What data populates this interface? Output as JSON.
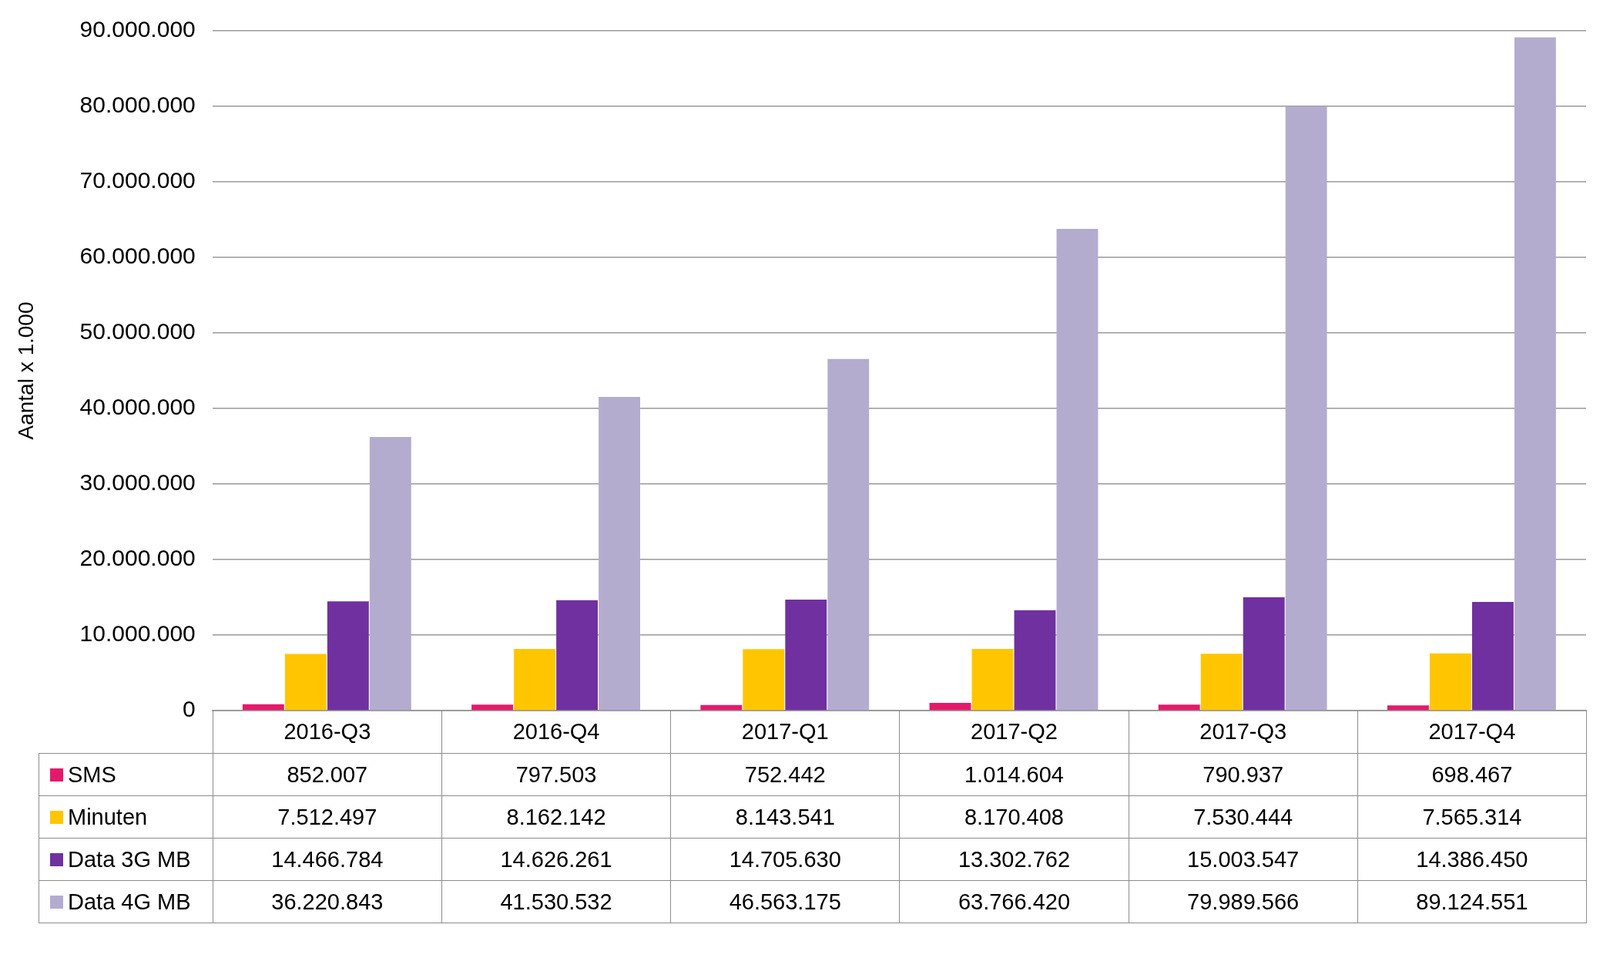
{
  "chart_data": {
    "type": "bar",
    "ylabel": "Aantal x 1.000",
    "categories": [
      "2016-Q3",
      "2016-Q4",
      "2017-Q1",
      "2017-Q2",
      "2017-Q3",
      "2017-Q4"
    ],
    "series": [
      {
        "name": "SMS",
        "color": "#e5196c",
        "values": [
          852007,
          797503,
          752442,
          1014604,
          790937,
          698467
        ],
        "value_labels": [
          "852.007",
          "797.503",
          "752.442",
          "1.014.604",
          "790.937",
          "698.467"
        ]
      },
      {
        "name": "Minuten",
        "color": "#ffc600",
        "values": [
          7512497,
          8162142,
          8143541,
          8170408,
          7530444,
          7565314
        ],
        "value_labels": [
          "7.512.497",
          "8.162.142",
          "8.143.541",
          "8.170.408",
          "7.530.444",
          "7.565.314"
        ]
      },
      {
        "name": "Data 3G MB",
        "color": "#7030a0",
        "values": [
          14466784,
          14626261,
          14705630,
          13302762,
          15003547,
          14386450
        ],
        "value_labels": [
          "14.466.784",
          "14.626.261",
          "14.705.630",
          "13.302.762",
          "15.003.547",
          "14.386.450"
        ]
      },
      {
        "name": "Data 4G MB",
        "color": "#b4accf",
        "values": [
          36220843,
          41530532,
          46563175,
          63766420,
          79989566,
          89124551
        ],
        "value_labels": [
          "36.220.843",
          "41.530.532",
          "46.563.175",
          "63.766.420",
          "79.989.566",
          "89.124.551"
        ]
      }
    ],
    "ylim": [
      0,
      90000000
    ],
    "yticks": [
      0,
      {
        "value": 10000000,
        "label": "10.000.000"
      },
      {
        "value": 20000000,
        "label": "20.000.000"
      },
      {
        "value": 30000000,
        "label": "30.000.000"
      },
      {
        "value": 40000000,
        "label": "40.000.000"
      },
      {
        "value": 50000000,
        "label": "50.000.000"
      },
      {
        "value": 60000000,
        "label": "60.000.000"
      },
      {
        "value": 70000000,
        "label": "70.000.000"
      },
      {
        "value": 80000000,
        "label": "80.000.000"
      },
      {
        "value": 90000000,
        "label": "90.000.000"
      }
    ],
    "grid": true
  }
}
